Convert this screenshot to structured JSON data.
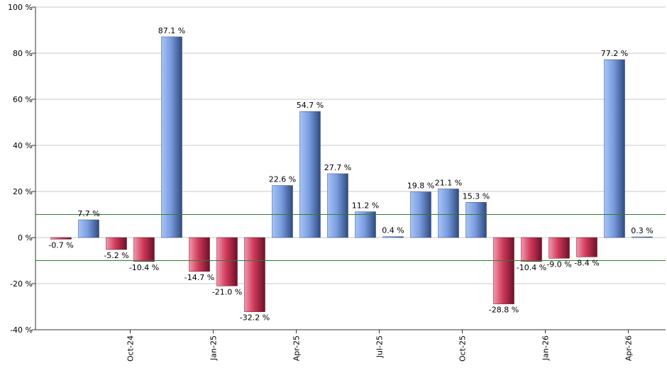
{
  "chart_data": {
    "type": "bar",
    "categories": [
      "",
      "",
      "",
      "",
      "",
      "",
      "",
      "",
      "",
      "",
      "",
      "",
      "",
      "",
      "",
      "",
      "",
      "",
      "",
      "",
      "",
      ""
    ],
    "values": [
      -0.7,
      7.7,
      -5.2,
      -10.4,
      87.1,
      -14.7,
      -21.0,
      -32.2,
      22.6,
      54.7,
      27.7,
      11.2,
      0.4,
      19.8,
      21.1,
      15.3,
      -28.8,
      -10.4,
      -9.0,
      -8.4,
      77.2,
      0.3
    ],
    "data_labels": [
      "-0.7 %",
      "7.7 %",
      "-5.2 %",
      "-10.4 %",
      "87.1 %",
      "-14.7 %",
      "-21.0 %",
      "-32.2 %",
      "22.6 %",
      "54.7 %",
      "27.7 %",
      "11.2 %",
      "0.4 %",
      "19.8 %",
      "21.1 %",
      "15.3 %",
      "-28.8 %",
      "-10.4 %",
      "-9.0 %",
      "-8.4 %",
      "77.2 %",
      "0.3 %"
    ],
    "x_tick_labels": [
      "Oct-24",
      "Jan-25",
      "Apr-25",
      "Jul-25",
      "Oct-25",
      "Jan-26",
      "Apr-26"
    ],
    "x_tick_after_bar": [
      2,
      5,
      8,
      11,
      14,
      17,
      20
    ],
    "y_tick_labels": [
      "100 %",
      "80 %",
      "60 %",
      "40 %",
      "20 %",
      "0 %",
      "-20 %",
      "-40 %"
    ],
    "y_ticks": [
      100,
      80,
      60,
      40,
      20,
      0,
      -20,
      -40
    ],
    "ylim": [
      -40,
      100
    ],
    "reference_lines": [
      10,
      -10
    ],
    "grid": "horizontal",
    "title": "",
    "xlabel": "",
    "ylabel": "",
    "colors": {
      "positive_light": "#a9c4f5",
      "positive_mid": "#7a9de0",
      "positive_dark": "#2f4a80",
      "negative_light": "#f09aae",
      "negative_mid": "#d03a5a",
      "negative_dark": "#6e1028",
      "reference_line": "#2e7d32",
      "grid": "#c8c8c8",
      "axis": "#333333"
    }
  }
}
